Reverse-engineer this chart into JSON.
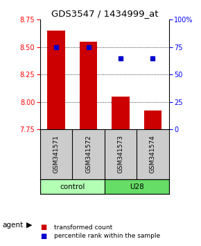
{
  "title": "GDS3547 / 1434999_at",
  "samples": [
    "GSM341571",
    "GSM341572",
    "GSM341573",
    "GSM341574"
  ],
  "bar_values": [
    8.65,
    8.55,
    8.05,
    7.92
  ],
  "percentile_values": [
    75,
    75,
    65,
    65
  ],
  "ylim_left": [
    7.75,
    8.75
  ],
  "ylim_right": [
    0,
    100
  ],
  "yticks_left": [
    7.75,
    8.0,
    8.25,
    8.5,
    8.75
  ],
  "yticks_right": [
    0,
    25,
    50,
    75,
    100
  ],
  "bar_color": "#cc0000",
  "dot_color": "#0000cc",
  "bar_bottom": 7.75,
  "control_color": "#b3ffb3",
  "u28_color": "#66dd66",
  "sample_bg_color": "#cccccc",
  "legend_bar_label": "transformed count",
  "legend_dot_label": "percentile rank within the sample",
  "agent_label": "agent",
  "plot_bg": "#ffffff",
  "grid_yticks": [
    8.0,
    8.25,
    8.5
  ]
}
